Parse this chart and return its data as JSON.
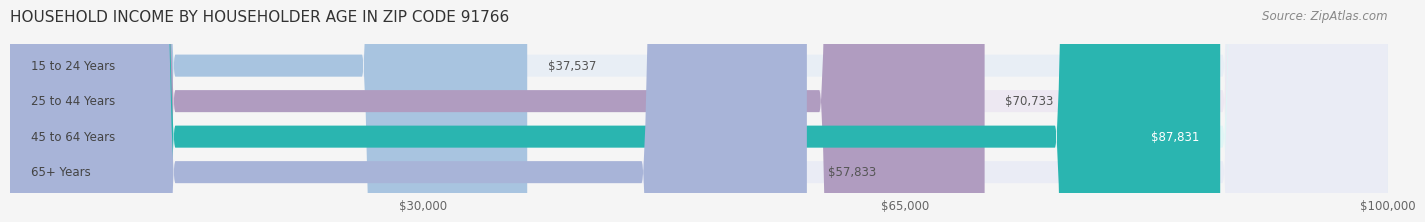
{
  "title": "HOUSEHOLD INCOME BY HOUSEHOLDER AGE IN ZIP CODE 91766",
  "source": "Source: ZipAtlas.com",
  "categories": [
    "15 to 24 Years",
    "25 to 44 Years",
    "45 to 64 Years",
    "65+ Years"
  ],
  "values": [
    37537,
    70733,
    87831,
    57833
  ],
  "bar_colors": [
    "#a8c4e0",
    "#b09cc0",
    "#2ab5b0",
    "#a8b4d8"
  ],
  "bar_bg_colors": [
    "#e8eef5",
    "#ede8f2",
    "#e0f5f5",
    "#eaecf5"
  ],
  "label_colors": [
    "#555555",
    "#555555",
    "#ffffff",
    "#555555"
  ],
  "value_labels": [
    "$37,537",
    "$70,733",
    "$87,831",
    "$57,833"
  ],
  "x_min": 0,
  "x_max": 100000,
  "x_ticks": [
    30000,
    65000,
    100000
  ],
  "x_tick_labels": [
    "$30,000",
    "$65,000",
    "$100,000"
  ],
  "background_color": "#f5f5f5",
  "title_fontsize": 11,
  "source_fontsize": 8.5,
  "bar_label_fontsize": 8.5,
  "tick_fontsize": 8.5,
  "cat_label_fontsize": 8.5
}
